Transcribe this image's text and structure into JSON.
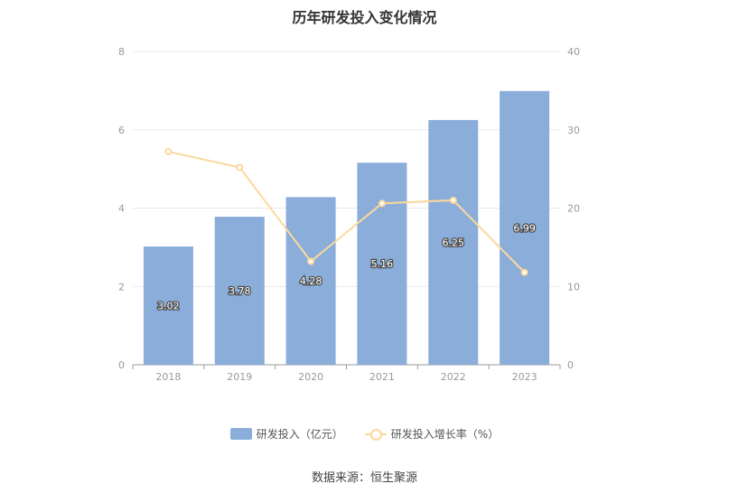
{
  "title": "历年研发投入变化情况",
  "source": "数据来源：恒生聚源",
  "colors": {
    "bar": "#8badda",
    "line": "#fcd89c",
    "grid": "#e8e8e8",
    "axis": "#999999"
  },
  "chart_data": {
    "type": "bar",
    "title": "历年研发投入变化情况",
    "categories": [
      "2018",
      "2019",
      "2020",
      "2021",
      "2022",
      "2023"
    ],
    "series": [
      {
        "name": "研发投入（亿元）",
        "type": "bar",
        "axis": "left",
        "values": [
          3.02,
          3.78,
          4.28,
          5.16,
          6.25,
          6.99
        ],
        "labels": [
          "3.02",
          "3.78",
          "4.28",
          "5.16",
          "6.25",
          "6.99"
        ]
      },
      {
        "name": "研发投入增长率（%）",
        "type": "line",
        "axis": "right",
        "values": [
          27.2,
          25.2,
          13.2,
          20.6,
          21.0,
          11.8
        ]
      }
    ],
    "y_left": {
      "min": 0,
      "max": 8,
      "ticks": [
        "0",
        "2",
        "4",
        "6",
        "8"
      ]
    },
    "y_right": {
      "min": 0,
      "max": 40,
      "ticks": [
        "0",
        "10",
        "20",
        "30",
        "40"
      ]
    },
    "grid": true,
    "legend_position": "bottom"
  }
}
